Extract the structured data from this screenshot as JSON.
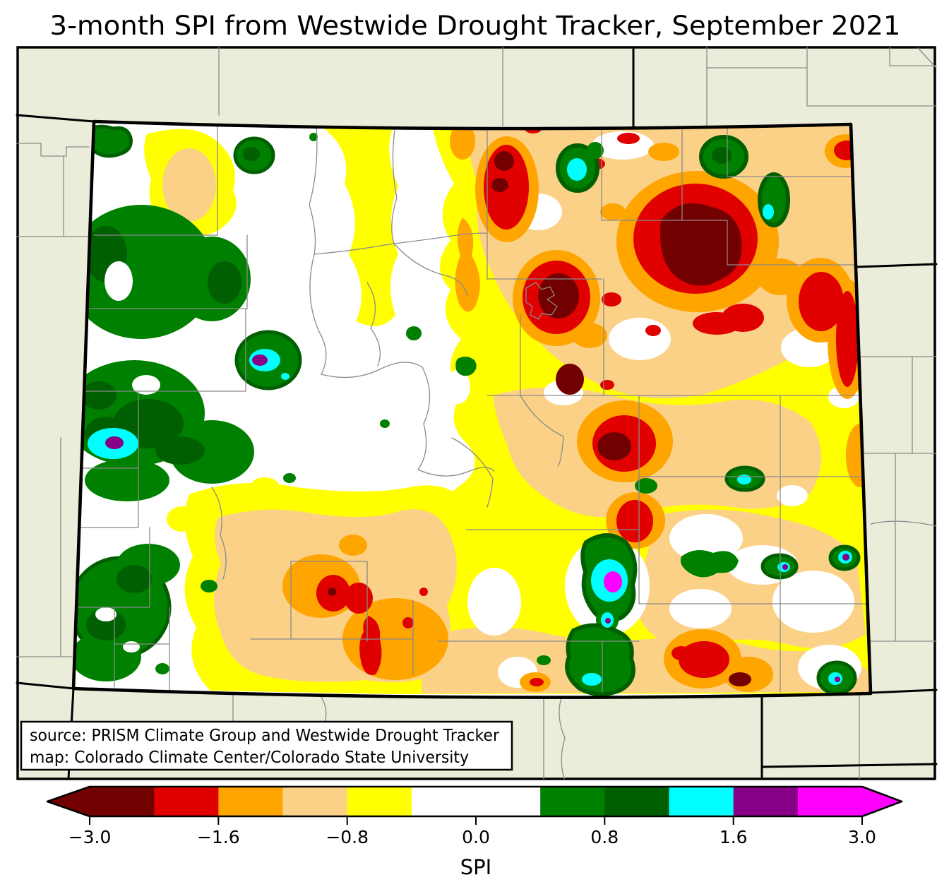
{
  "title": "3-month SPI from Westwide Drought Tracker, September 2021",
  "source_box": {
    "line1": "source: PRISM Climate Group and Westwide Drought Tracker",
    "line2": "map: Colorado Climate Center/Colorado State University"
  },
  "colorbar": {
    "label": "SPI",
    "ticks": [
      "−3.0",
      "−1.6",
      "−0.8",
      "0.0",
      "0.8",
      "1.6",
      "3.0"
    ],
    "segments": [
      "spi_darkred",
      "spi_red",
      "spi_orange",
      "spi_tan",
      "spi_yellow",
      "spi_white",
      "spi_white",
      "spi_green",
      "spi_darkgreen",
      "spi_cyan",
      "spi_purple",
      "spi_magenta"
    ],
    "extend_low": "spi_darkred",
    "extend_high": "spi_magenta"
  },
  "palette": {
    "figure_background": "#FFFFFF",
    "map_background": "#ECECDB",
    "state_fill_white": "#FFFFFF",
    "spi_darkred": "#730000",
    "spi_red": "#E10000",
    "spi_orange": "#FFA500",
    "spi_tan": "#FBD187",
    "spi_yellow": "#FFFF00",
    "spi_white": "#FFFFFF",
    "spi_green": "#008000",
    "spi_darkgreen": "#005F00",
    "spi_cyan": "#00FFFF",
    "spi_purple": "#870087",
    "spi_magenta": "#FF00FF",
    "county_line": "#8A8A8A",
    "state_line": "#000000"
  }
}
